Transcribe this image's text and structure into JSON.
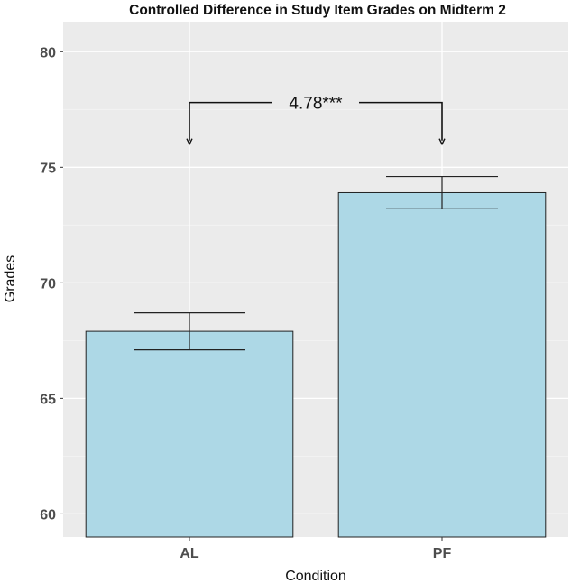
{
  "chart_data": {
    "type": "bar",
    "title": "Controlled Difference in Study Item Grades on Midterm 2",
    "xlabel": "Condition",
    "ylabel": "Grades",
    "categories": [
      "AL",
      "PF"
    ],
    "values": [
      67.9,
      73.9
    ],
    "error_low": [
      67.1,
      73.2
    ],
    "error_high": [
      68.7,
      74.6
    ],
    "ylim": [
      59.0,
      81.3
    ],
    "yticks": [
      60,
      65,
      70,
      75,
      80
    ],
    "ytick_labels": [
      "60",
      "65",
      "70",
      "75",
      "80"
    ],
    "grid": true,
    "legend": "none",
    "bar_color": "#add8e6",
    "panel_color": "#ebebeb",
    "annotation": {
      "text": "4.78***",
      "from": "AL",
      "to": "PF",
      "bracket_y": 77.8,
      "arrow_tip_y": 76.0
    }
  }
}
